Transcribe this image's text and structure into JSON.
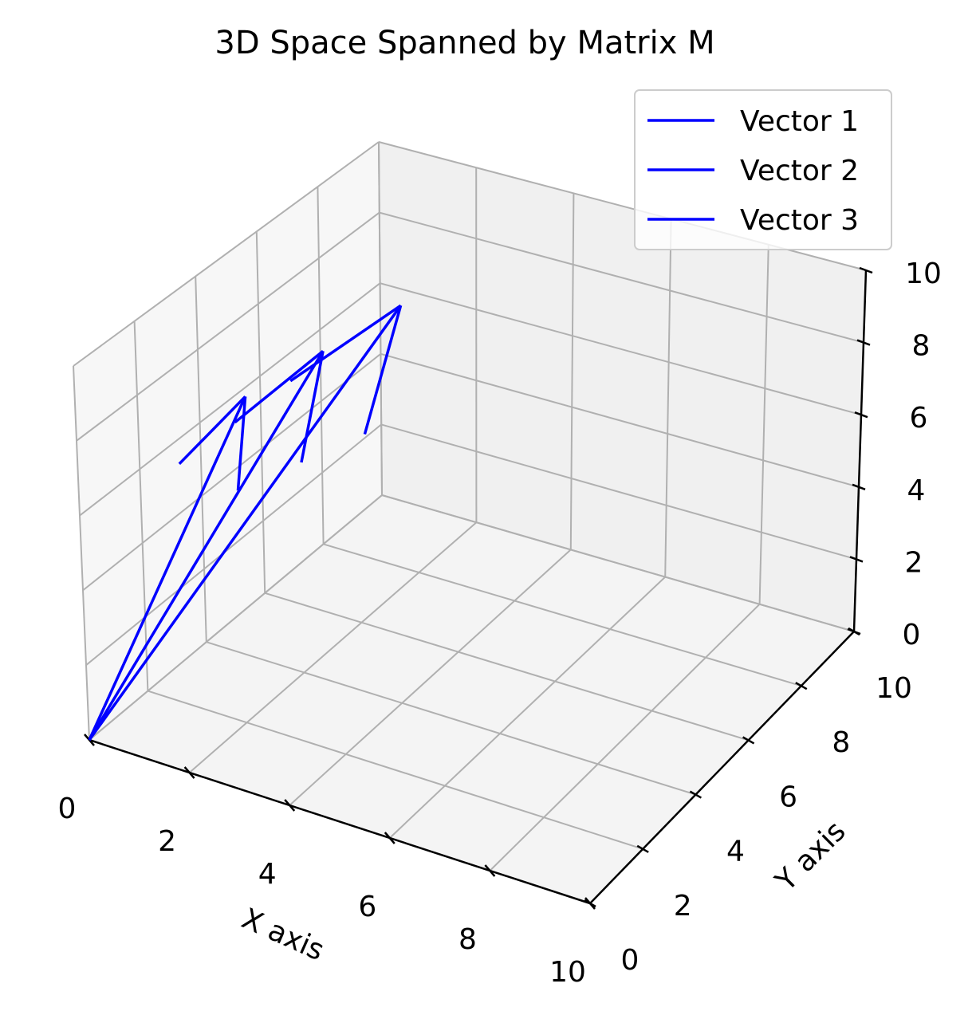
{
  "chart_data": {
    "type": "line",
    "projection": "3d",
    "title": "3D Space Spanned by Matrix M",
    "xlabel": "X axis",
    "ylabel": "Y axis",
    "zlabel": "",
    "xlim": [
      0,
      10
    ],
    "ylim": [
      0,
      10
    ],
    "zlim": [
      0,
      10
    ],
    "xticks": [
      "0",
      "2",
      "4",
      "6",
      "8",
      "10"
    ],
    "yticks": [
      "0",
      "2",
      "4",
      "6",
      "8",
      "10"
    ],
    "zticks": [
      "0",
      "2",
      "4",
      "6",
      "8",
      "10"
    ],
    "grid": true,
    "legend_position": "top-right",
    "series": [
      {
        "name": "Vector 1",
        "color": "#0000ff",
        "start": [
          0,
          0,
          0
        ],
        "end": [
          1,
          4,
          7
        ],
        "arrowhead": true
      },
      {
        "name": "Vector 2",
        "color": "#0000ff",
        "start": [
          0,
          0,
          0
        ],
        "end": [
          2,
          5,
          8
        ],
        "arrowhead": true
      },
      {
        "name": "Vector 3",
        "color": "#0000ff",
        "start": [
          0,
          0,
          0
        ],
        "end": [
          3,
          6,
          9
        ],
        "arrowhead": true
      }
    ]
  }
}
